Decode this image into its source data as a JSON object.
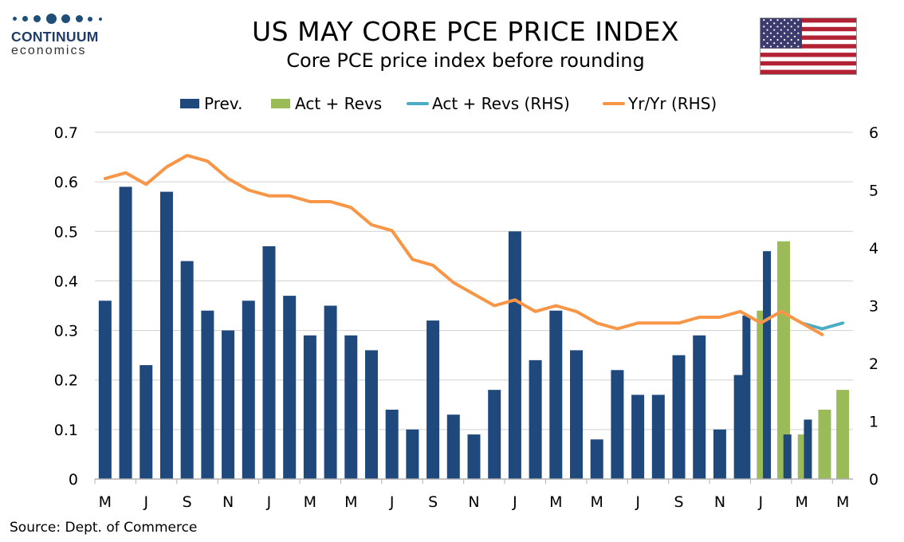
{
  "branding": {
    "name": "CONTINUUM",
    "sub": "economics"
  },
  "header": {
    "title": "US MAY CORE PCE PRICE INDEX",
    "subtitle": "Core PCE price index before rounding"
  },
  "source": "Source: Dept. of Commerce",
  "colors": {
    "prev": "#1f497d",
    "act": "#9bbb59",
    "act_line": "#4bacc6",
    "yoy": "#f79646"
  },
  "chart_data": {
    "type": "bar",
    "title": "US MAY CORE PCE PRICE INDEX",
    "subtitle": "Core PCE price index before rounding",
    "x_tick_labels": [
      "M",
      "J",
      "S",
      "N",
      "J",
      "M",
      "M",
      "J",
      "S",
      "N",
      "J",
      "M",
      "M",
      "J",
      "S",
      "N",
      "J",
      "M",
      "M"
    ],
    "y_left_ticks": [
      "0",
      "0.1",
      "0.2",
      "0.3",
      "0.4",
      "0.5",
      "0.6",
      "0.7"
    ],
    "y_right_ticks": [
      "0",
      "1",
      "2",
      "3",
      "4",
      "5",
      "6"
    ],
    "ylim_left": [
      0,
      0.7
    ],
    "ylim_right": [
      0,
      6
    ],
    "series": [
      {
        "name": "Prev.",
        "type": "bar",
        "axis": "left",
        "values": [
          0.36,
          0.59,
          0.23,
          0.58,
          0.44,
          0.34,
          0.3,
          0.36,
          0.47,
          0.37,
          0.29,
          0.35,
          0.29,
          0.26,
          0.14,
          0.1,
          0.32,
          0.13,
          0.09,
          0.18,
          0.5,
          0.24,
          0.34,
          0.26,
          0.08,
          0.22,
          0.17,
          0.17,
          0.25,
          0.29,
          0.1,
          0.21,
          0.33,
          0.46,
          0.09,
          0.12,
          null
        ]
      },
      {
        "name": "Act + Revs",
        "type": "bar",
        "axis": "left",
        "values": [
          null,
          null,
          null,
          null,
          null,
          null,
          null,
          null,
          null,
          null,
          null,
          null,
          null,
          null,
          null,
          null,
          null,
          null,
          null,
          null,
          null,
          null,
          null,
          null,
          null,
          null,
          null,
          null,
          null,
          null,
          null,
          null,
          0.34,
          0.48,
          0.09,
          0.14,
          0.18
        ]
      },
      {
        "name": "Act + Revs (RHS)",
        "type": "line",
        "axis": "right",
        "values": [
          null,
          null,
          null,
          null,
          null,
          null,
          null,
          null,
          null,
          null,
          null,
          null,
          null,
          null,
          null,
          null,
          null,
          null,
          null,
          null,
          null,
          null,
          null,
          null,
          null,
          null,
          null,
          null,
          null,
          null,
          null,
          null,
          null,
          null,
          2.7,
          2.6,
          2.7
        ]
      },
      {
        "name": "Yr/Yr (RHS)",
        "type": "line",
        "axis": "right",
        "values": [
          5.2,
          5.3,
          5.1,
          5.4,
          5.6,
          5.5,
          5.2,
          5.0,
          4.9,
          4.9,
          4.8,
          4.8,
          4.7,
          4.4,
          4.3,
          3.8,
          3.7,
          3.4,
          3.2,
          3.0,
          3.1,
          2.9,
          3.0,
          2.9,
          2.7,
          2.6,
          2.7,
          2.7,
          2.7,
          2.8,
          2.8,
          2.9,
          2.7,
          2.9,
          2.7,
          2.5,
          null
        ]
      }
    ]
  }
}
